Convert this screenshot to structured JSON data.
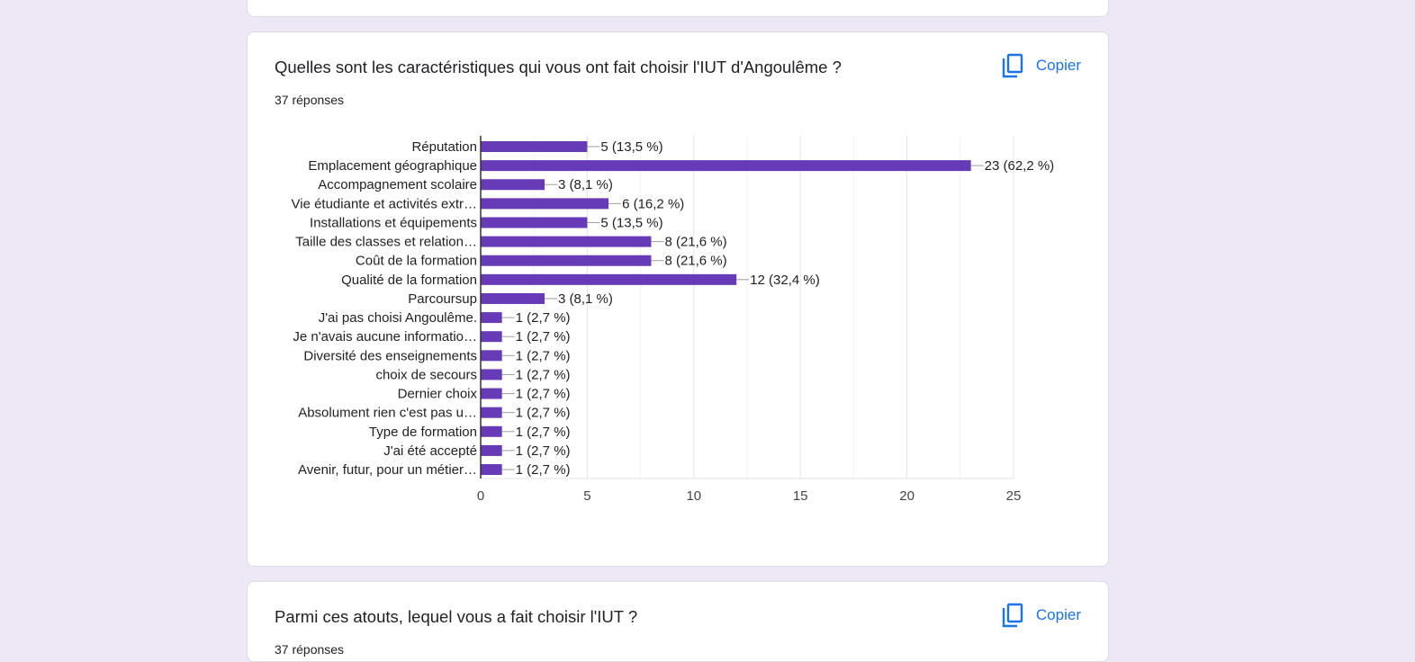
{
  "questions": [
    {
      "title": "Quelles sont les caractéristiques qui vous ont fait choisir l'IUT d'Angoulême ?",
      "responses": "37 réponses",
      "copy_label": "Copier"
    },
    {
      "title": "Parmi ces atouts, lequel vous a fait choisir l'IUT ?",
      "responses": "37 réponses",
      "copy_label": "Copier"
    }
  ],
  "icons": {
    "copy": "copy-icon"
  },
  "colors": {
    "bar": "#673ab7",
    "background": "#ede7f6",
    "accent": "#1a73e8"
  },
  "chart_data": {
    "type": "bar",
    "orientation": "horizontal",
    "categories": [
      "Réputation",
      "Emplacement géographique",
      "Accompagnement scolaire",
      "Vie étudiante et activités extr…",
      "Installations et équipements",
      "Taille des classes et relation…",
      "Coût de la formation",
      "Qualité de la formation",
      "Parcoursup",
      "J'ai pas choisi Angoulême.",
      "Je n'avais aucune informatio…",
      "Diversité des enseignements",
      "choix de secours",
      "Dernier choix",
      "Absolument rien c'est pas u…",
      "Type de formation",
      "J'ai été accepté",
      "Avenir, futur, pour un métier…"
    ],
    "values": [
      5,
      23,
      3,
      6,
      5,
      8,
      8,
      12,
      3,
      1,
      1,
      1,
      1,
      1,
      1,
      1,
      1,
      1
    ],
    "value_labels": [
      "5 (13,5 %)",
      "23 (62,2 %)",
      "3 (8,1 %)",
      "6 (16,2 %)",
      "5 (13,5 %)",
      "8 (21,6 %)",
      "8 (21,6 %)",
      "12 (32,4 %)",
      "3 (8,1 %)",
      "1 (2,7 %)",
      "1 (2,7 %)",
      "1 (2,7 %)",
      "1 (2,7 %)",
      "1 (2,7 %)",
      "1 (2,7 %)",
      "1 (2,7 %)",
      "1 (2,7 %)",
      "1 (2,7 %)"
    ],
    "xlim": [
      0,
      25
    ],
    "xticks": [
      "0",
      "5",
      "10",
      "15",
      "20",
      "25"
    ],
    "grid": true,
    "legend": "none"
  }
}
